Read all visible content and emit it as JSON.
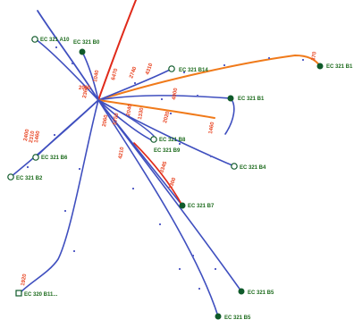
{
  "colors": {
    "blue_line": "#3f4fbf",
    "orange_line": "#f07a1a",
    "red_line": "#e02a1a",
    "node_fill": "#0f5a2a",
    "label": "#1c6b1c",
    "red_label": "#e8421f",
    "background": "#ffffff"
  },
  "nodes": [
    {
      "id": "a10",
      "label": "EC 321 A10",
      "style": "open"
    },
    {
      "id": "b0",
      "label": "EC 321 B0",
      "style": "filled"
    },
    {
      "id": "b1",
      "label": "EC 321 B1",
      "style": "filled"
    },
    {
      "id": "b14",
      "label": "EC 321 B14",
      "style": "open"
    },
    {
      "id": "b3",
      "label": "EC 321 B1",
      "style": "filled"
    },
    {
      "id": "b8",
      "label": "EC 321 B8",
      "style": "open"
    },
    {
      "id": "b9",
      "label": "EC 321 B9",
      "style": "open"
    },
    {
      "id": "b4",
      "label": "EC 321 B4",
      "style": "open"
    },
    {
      "id": "b6",
      "label": "EC 321 B6",
      "style": "open"
    },
    {
      "id": "b2",
      "label": "EC 321 B2",
      "style": "open"
    },
    {
      "id": "b7",
      "label": "EC 321 B7",
      "style": "filled"
    },
    {
      "id": "b11",
      "label": "EC 320 B11...",
      "style": "open"
    },
    {
      "id": "b5b",
      "label": "EC 321 B5",
      "style": "filled"
    },
    {
      "id": "b5",
      "label": "EC 321 B5",
      "style": "filled"
    }
  ],
  "red_labels": [
    "370",
    "4310",
    "2740",
    "6470",
    "1040",
    "2060",
    "2360",
    "4900",
    "1460",
    "2020",
    "1330",
    "2040",
    "4210",
    "5750",
    "2060",
    "2400",
    "2310",
    "1460",
    "3345",
    "1300",
    "1920"
  ]
}
